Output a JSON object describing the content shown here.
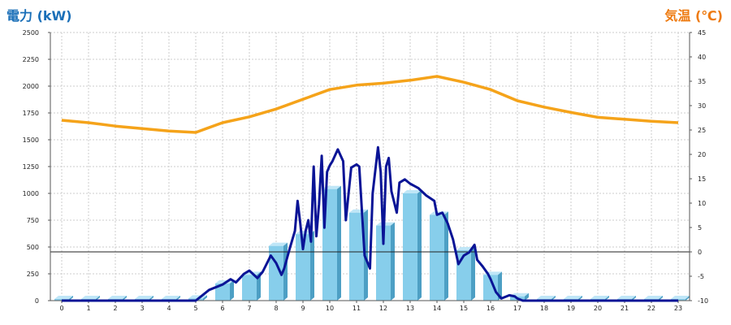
{
  "colors": {
    "power_axis_title": "#1a6fb8",
    "temp_axis_title": "#ee7a10",
    "temperature_line": "#f5a31a",
    "power_line": "#0a1496",
    "bar_front": "#87ceeb",
    "bar_side": "#4d9fc4",
    "bar_top": "#bfe6f7",
    "grid": "#cccccc"
  },
  "chart_data": {
    "type": "bar",
    "left_axis_title": "電力 (kW)",
    "right_axis_title": "気温 (℃)",
    "x_ticks": [
      "0",
      "1",
      "2",
      "3",
      "4",
      "5",
      "6",
      "7",
      "8",
      "9",
      "10",
      "11",
      "12",
      "13",
      "14",
      "15",
      "16",
      "17",
      "18",
      "19",
      "20",
      "21",
      "22",
      "23"
    ],
    "y_left_ticks": [
      "0",
      "250",
      "500",
      "750",
      "1000",
      "1250",
      "1500",
      "1750",
      "2000",
      "2250",
      "2500"
    ],
    "y_right_ticks": [
      "-10",
      "-5",
      "0",
      "5",
      "10",
      "15",
      "20",
      "25",
      "30",
      "35",
      "40",
      "45"
    ],
    "y_left_range": [
      0,
      2500
    ],
    "y_right_range": [
      -10,
      45
    ],
    "grid": true,
    "hourly_power_bars": {
      "x": [
        0,
        1,
        2,
        3,
        4,
        5,
        6,
        7,
        8,
        9,
        10,
        11,
        12,
        13,
        14,
        15,
        16,
        17,
        18,
        19,
        20,
        21,
        22,
        23
      ],
      "values": [
        15,
        15,
        15,
        15,
        15,
        20,
        160,
        240,
        510,
        620,
        1040,
        820,
        700,
        1000,
        800,
        470,
        240,
        40,
        15,
        15,
        15,
        15,
        15,
        15
      ]
    },
    "temperature_line": {
      "x": [
        0,
        1,
        2,
        3,
        4,
        5,
        6,
        7,
        8,
        9,
        10,
        11,
        12,
        13,
        14,
        15,
        16,
        17,
        18,
        19,
        20,
        21,
        22,
        23
      ],
      "values": [
        27,
        26.5,
        25.8,
        25.3,
        24.8,
        24.5,
        26.5,
        27.7,
        29.3,
        31.3,
        33.3,
        34.2,
        34.6,
        35.2,
        36,
        34.8,
        33.3,
        31,
        29.7,
        28.6,
        27.6,
        27.2,
        26.8,
        26.5
      ]
    },
    "power_line": {
      "x": [
        0,
        4,
        5,
        5.5,
        6,
        6.3,
        6.5,
        6.8,
        7,
        7.3,
        7.5,
        7.8,
        8,
        8.2,
        8.3,
        8.5,
        8.7,
        8.8,
        8.9,
        9,
        9.1,
        9.2,
        9.3,
        9.4,
        9.5,
        9.6,
        9.7,
        9.8,
        9.9,
        10,
        10.1,
        10.3,
        10.5,
        10.6,
        10.8,
        11,
        11.1,
        11.3,
        11.5,
        11.6,
        11.8,
        11.9,
        12,
        12.1,
        12.2,
        12.3,
        12.5,
        12.6,
        12.8,
        13,
        13.3,
        13.6,
        13.9,
        14,
        14.2,
        14.4,
        14.6,
        14.8,
        15,
        15.2,
        15.4,
        15.5,
        15.7,
        15.9,
        16,
        16.2,
        16.4,
        16.7,
        16.9,
        17,
        17.2,
        17.5,
        18,
        23
      ],
      "values": [
        0,
        0,
        0,
        100,
        150,
        200,
        170,
        250,
        280,
        210,
        270,
        420,
        350,
        240,
        300,
        480,
        650,
        930,
        720,
        480,
        650,
        750,
        550,
        1250,
        600,
        900,
        1350,
        680,
        1200,
        1260,
        1300,
        1410,
        1300,
        750,
        1240,
        1270,
        1250,
        420,
        300,
        1000,
        1430,
        1200,
        530,
        1250,
        1330,
        1020,
        820,
        1100,
        1130,
        1090,
        1050,
        980,
        930,
        800,
        820,
        720,
        570,
        340,
        420,
        450,
        520,
        380,
        320,
        250,
        200,
        80,
        20,
        50,
        40,
        20,
        0,
        0,
        0,
        0
      ]
    }
  }
}
